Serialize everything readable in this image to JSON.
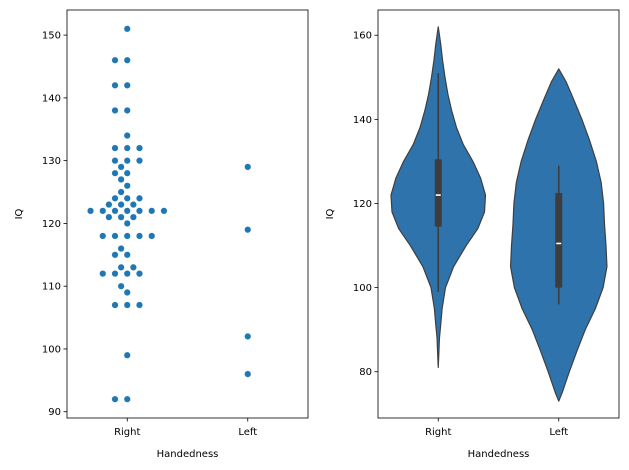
{
  "colors": {
    "marker": "#1f77b4",
    "violin_fill": "#2f73ac",
    "violin_edge": "#3f3f3f",
    "box": "#3d3d3d",
    "median": "#ffffff"
  },
  "chart_data": [
    {
      "type": "scatter",
      "subtype": "swarm",
      "title": "",
      "xlabel": "Handedness",
      "ylabel": "IQ",
      "categories": [
        "Right",
        "Left"
      ],
      "ylim": [
        89,
        154
      ],
      "yticks": [
        90,
        100,
        110,
        120,
        130,
        140,
        150
      ],
      "series": [
        {
          "name": "Right",
          "values": [
            151,
            146,
            146,
            142,
            142,
            138,
            138,
            134,
            132,
            132,
            132,
            130,
            130,
            130,
            129,
            128,
            128,
            127,
            126,
            125,
            124,
            124,
            124,
            123,
            123,
            123,
            122,
            122,
            122,
            122,
            122,
            122,
            122,
            121,
            121,
            121,
            120,
            118,
            118,
            118,
            118,
            118,
            116,
            115,
            115,
            113,
            113,
            112,
            112,
            112,
            112,
            110,
            109,
            107,
            107,
            107,
            99,
            92,
            92
          ]
        },
        {
          "name": "Left",
          "values": [
            129,
            119,
            102,
            96
          ]
        }
      ]
    },
    {
      "type": "violin",
      "title": "",
      "xlabel": "Handedness",
      "ylabel": "IQ",
      "categories": [
        "Right",
        "Left"
      ],
      "ylim": [
        69,
        166
      ],
      "yticks": [
        80,
        100,
        120,
        140,
        160
      ],
      "series": [
        {
          "name": "Right",
          "density": [
            [
              81,
              0.0
            ],
            [
              85,
              0.015
            ],
            [
              88,
              0.025
            ],
            [
              91,
              0.05
            ],
            [
              95,
              0.08
            ],
            [
              100,
              0.15
            ],
            [
              105,
              0.32
            ],
            [
              110,
              0.58
            ],
            [
              114,
              0.82
            ],
            [
              118,
              0.96
            ],
            [
              122,
              0.98
            ],
            [
              126,
              0.88
            ],
            [
              130,
              0.72
            ],
            [
              134,
              0.52
            ],
            [
              138,
              0.38
            ],
            [
              142,
              0.28
            ],
            [
              146,
              0.2
            ],
            [
              150,
              0.14
            ],
            [
              154,
              0.09
            ],
            [
              158,
              0.05
            ],
            [
              162,
              0.0
            ]
          ],
          "median": 122,
          "q1": 114.5,
          "q3": 130.5,
          "whisker_low": 99,
          "whisker_high": 151
        },
        {
          "name": "Left",
          "density": [
            [
              73,
              0.0
            ],
            [
              75,
              0.07
            ],
            [
              80,
              0.22
            ],
            [
              85,
              0.38
            ],
            [
              90,
              0.55
            ],
            [
              95,
              0.76
            ],
            [
              100,
              0.92
            ],
            [
              105,
              1.0
            ],
            [
              110,
              0.98
            ],
            [
              115,
              0.95
            ],
            [
              120,
              0.93
            ],
            [
              125,
              0.88
            ],
            [
              130,
              0.78
            ],
            [
              135,
              0.64
            ],
            [
              140,
              0.48
            ],
            [
              145,
              0.3
            ],
            [
              149,
              0.15
            ],
            [
              152,
              0.0
            ]
          ],
          "median": 110.5,
          "q1": 100,
          "q3": 122.5,
          "whisker_low": 96,
          "whisker_high": 129
        }
      ]
    }
  ]
}
